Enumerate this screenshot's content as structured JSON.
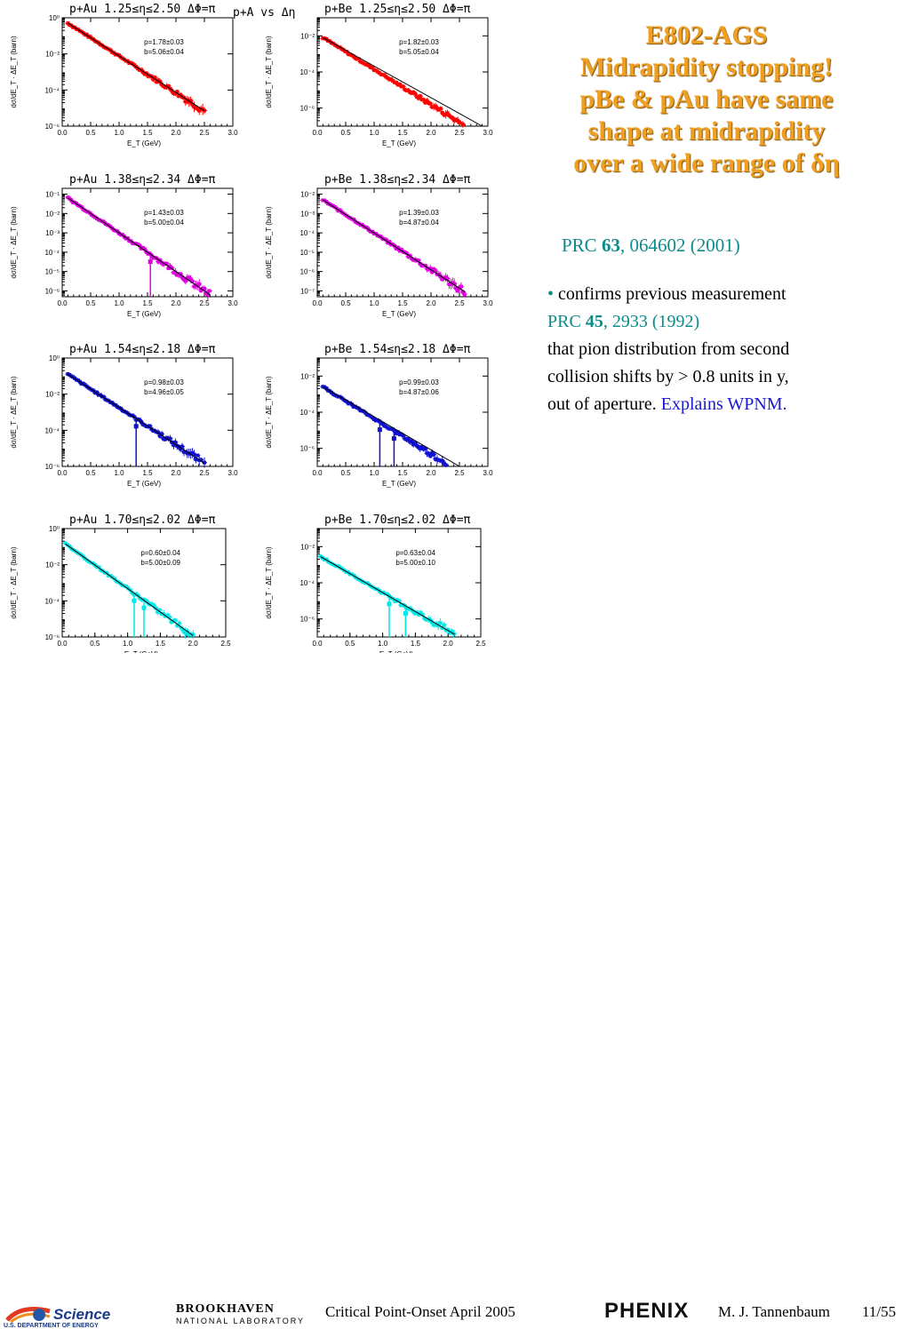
{
  "slide": {
    "title_lines": [
      "E802-AGS",
      "Midrapidity stopping!",
      "pBe & pAu have same",
      "shape at midrapidity",
      "over a wide range of δη"
    ],
    "ref1": {
      "prefix": "PRC ",
      "vol": "63",
      "rest": ", 064602 (2001)"
    },
    "body": {
      "bullet": "•",
      "line1": " confirms previous measurement",
      "ref2_prefix": "PRC ",
      "ref2_vol": "45",
      "ref2_rest": ", 2933 (1992)",
      "line3": "that pion distribution from second",
      "line4": "collision shifts by > 0.8 units in y,",
      "line5": "out of aperture. ",
      "line5_link": "Explains WPNM."
    },
    "footer": {
      "doe_science": "Science",
      "doe_sub": "U.S. DEPARTMENT OF ENERGY",
      "bnl_line1": "BROOKHAVEN",
      "bnl_line2": "NATIONAL LABORATORY",
      "event": "Critical Point-Onset April 2005",
      "phenix": "PHENIX",
      "author": "M. J. Tannenbaum",
      "page": "11/55"
    },
    "figure_header": "p+A vs Δη"
  },
  "chart_data": [
    {
      "type": "scatter",
      "title": "p+Au 1.25≤η≤2.50 ΔΦ=π",
      "color": "#ff0000",
      "xlabel": "E_T (GeV)",
      "ylabel": "dσ/dE_T · ΔE_T (barn)",
      "xlim": [
        0,
        3.0
      ],
      "ylim_exp": [
        -6,
        0
      ],
      "xticks": [
        "0.0",
        "0.5",
        "1.0",
        "1.5",
        "2.0",
        "2.5",
        "3.0"
      ],
      "yticks": [
        {
          "e": 0,
          "t": "10⁰"
        },
        {
          "e": -2,
          "t": "10⁻²"
        },
        {
          "e": -4,
          "t": "10⁻⁴"
        },
        {
          "e": -6,
          "t": "10⁻⁶"
        }
      ],
      "fit": {
        "p": "p=1.78±0.03",
        "b": "b=5.06±0.04",
        "ref_log": -0.3,
        "slope": -2.02
      },
      "range": [
        0.1,
        2.5
      ],
      "dips": []
    },
    {
      "type": "scatter",
      "title": "p+Be 1.25≤η≤2.50 ΔΦ=π",
      "color": "#ff0000",
      "xlabel": "E_T (GeV)",
      "ylabel": "dσ/dE_T · ΔE_T (barn)",
      "xlim": [
        0,
        3.0
      ],
      "ylim_exp": [
        -7,
        -1
      ],
      "xticks": [
        "0.0",
        "0.5",
        "1.0",
        "1.5",
        "2.0",
        "2.5",
        "3.0"
      ],
      "yticks": [
        {
          "e": -2,
          "t": "10⁻²"
        },
        {
          "e": -4,
          "t": "10⁻⁴"
        },
        {
          "e": -6,
          "t": "10⁻⁶"
        }
      ],
      "fit": {
        "p": "p=1.82±0.03",
        "b": "b=5.05±0.04",
        "ref_log": -2.1,
        "slope": -1.95
      },
      "range": [
        0.1,
        2.9
      ],
      "dips": []
    },
    {
      "type": "scatter",
      "title": "p+Au 1.38≤η≤2.34 ΔΦ=π",
      "color": "#e000e0",
      "xlabel": "E_T (GeV)",
      "ylabel": "dσ/dE_T · ΔE_T (barn)",
      "xlim": [
        0,
        3.0
      ],
      "ylim_exp": [
        -6.3,
        -0.7
      ],
      "xticks": [
        "0.0",
        "0.5",
        "1.0",
        "1.5",
        "2.0",
        "2.5",
        "3.0"
      ],
      "yticks": [
        {
          "e": -1,
          "t": "10⁻¹"
        },
        {
          "e": -2,
          "t": "10⁻²"
        },
        {
          "e": -3,
          "t": "10⁻³"
        },
        {
          "e": -4,
          "t": "10⁻⁴"
        },
        {
          "e": -5,
          "t": "10⁻⁵"
        },
        {
          "e": -6,
          "t": "10⁻⁶"
        }
      ],
      "fit": {
        "p": "p=1.43±0.03",
        "b": "b=5.00±0.04",
        "ref_log": -1.2,
        "slope": -2.0
      },
      "range": [
        0.1,
        2.6
      ],
      "dips": [
        1.55
      ]
    },
    {
      "type": "scatter",
      "title": "p+Be 1.38≤η≤2.34 ΔΦ=π",
      "color": "#e000e0",
      "xlabel": "E_T (GeV)",
      "ylabel": "dσ/dE_T · ΔE_T (barn)",
      "xlim": [
        0,
        3.0
      ],
      "ylim_exp": [
        -7.3,
        -1.7
      ],
      "xticks": [
        "0.0",
        "0.5",
        "1.0",
        "1.5",
        "2.0",
        "2.5",
        "3.0"
      ],
      "yticks": [
        {
          "e": -2,
          "t": "10⁻²"
        },
        {
          "e": -3,
          "t": "10⁻³"
        },
        {
          "e": -4,
          "t": "10⁻⁴"
        },
        {
          "e": -5,
          "t": "10⁻⁵"
        },
        {
          "e": -6,
          "t": "10⁻⁶"
        },
        {
          "e": -7,
          "t": "10⁻⁷"
        }
      ],
      "fit": {
        "p": "p=1.39±0.03",
        "b": "b=4.87±0.04",
        "ref_log": -2.3,
        "slope": -1.9
      },
      "range": [
        0.1,
        2.6
      ],
      "dips": []
    },
    {
      "type": "scatter",
      "title": "p+Au 1.54≤η≤2.18 ΔΦ=π",
      "color": "#1010d0",
      "xlabel": "E_T (GeV)",
      "ylabel": "dσ/dE_T · ΔE_T (barn)",
      "xlim": [
        0,
        3.0
      ],
      "ylim_exp": [
        -6,
        0
      ],
      "xticks": [
        "0.0",
        "0.5",
        "1.0",
        "1.5",
        "2.0",
        "2.5",
        "3.0"
      ],
      "yticks": [
        {
          "e": 0,
          "t": "10⁰"
        },
        {
          "e": -2,
          "t": "10⁻²"
        },
        {
          "e": -4,
          "t": "10⁻⁴"
        },
        {
          "e": -6,
          "t": "10⁻⁶"
        }
      ],
      "fit": {
        "p": "p=0.98±0.03",
        "b": "b=4.96±0.05",
        "ref_log": -0.9,
        "slope": -2.05
      },
      "range": [
        0.1,
        2.5
      ],
      "dips": [
        1.3
      ]
    },
    {
      "type": "scatter",
      "title": "p+Be 1.54≤η≤2.18 ΔΦ=π",
      "color": "#1010d0",
      "xlabel": "E_T (GeV)",
      "ylabel": "dσ/dE_T · ΔE_T (barn)",
      "xlim": [
        0,
        3.0
      ],
      "ylim_exp": [
        -7,
        -1
      ],
      "xticks": [
        "0.0",
        "0.5",
        "1.0",
        "1.5",
        "2.0",
        "2.5",
        "3.0"
      ],
      "yticks": [
        {
          "e": -2,
          "t": "10⁻²"
        },
        {
          "e": -4,
          "t": "10⁻⁴"
        },
        {
          "e": -6,
          "t": "10⁻⁶"
        }
      ],
      "fit": {
        "p": "p=0.99±0.03",
        "b": "b=4.87±0.06",
        "ref_log": -2.6,
        "slope": -1.95
      },
      "range": [
        0.1,
        2.5
      ],
      "dips": [
        1.1,
        1.35
      ]
    },
    {
      "type": "scatter",
      "title": "p+Au 1.70≤η≤2.02 ΔΦ=π",
      "color": "#00e8e8",
      "xlabel": "E_T (GeV)",
      "ylabel": "dσ/dE_T · ΔE_T (barn)",
      "xlim": [
        0,
        2.5
      ],
      "ylim_exp": [
        -6,
        0
      ],
      "xticks": [
        "0.0",
        "0.5",
        "1.0",
        "1.5",
        "2.0",
        "2.5"
      ],
      "yticks": [
        {
          "e": 0,
          "t": "10⁰"
        },
        {
          "e": -2,
          "t": "10⁻²"
        },
        {
          "e": -4,
          "t": "10⁻⁴"
        },
        {
          "e": -6,
          "t": "10⁻⁶"
        }
      ],
      "fit": {
        "p": "p=0.60±0.04",
        "b": "b=5.00±0.09",
        "ref_log": -0.85,
        "slope": -2.6
      },
      "range": [
        0.05,
        2.0
      ],
      "dips": [
        1.1,
        1.25
      ]
    },
    {
      "type": "scatter",
      "title": "p+Be 1.70≤η≤2.02 ΔΦ=π",
      "color": "#00e8e8",
      "xlabel": "E_T (GeV)",
      "ylabel": "dσ/dE_T · ΔE_T (barn)",
      "xlim": [
        0,
        2.5
      ],
      "ylim_exp": [
        -7,
        -1
      ],
      "xticks": [
        "0.0",
        "0.5",
        "1.0",
        "1.5",
        "2.0",
        "2.5"
      ],
      "yticks": [
        {
          "e": -2,
          "t": "10⁻²"
        },
        {
          "e": -4,
          "t": "10⁻⁴"
        },
        {
          "e": -6,
          "t": "10⁻⁶"
        }
      ],
      "fit": {
        "p": "p=0.63±0.04",
        "b": "b=5.00±0.10",
        "ref_log": -2.55,
        "slope": -2.1
      },
      "range": [
        0.05,
        2.1
      ],
      "dips": [
        1.1,
        1.35
      ]
    }
  ],
  "colors": {
    "title_orange": "#f0a020",
    "ref_teal": "#0e8a8a",
    "link_blue": "#1a1ad0"
  }
}
